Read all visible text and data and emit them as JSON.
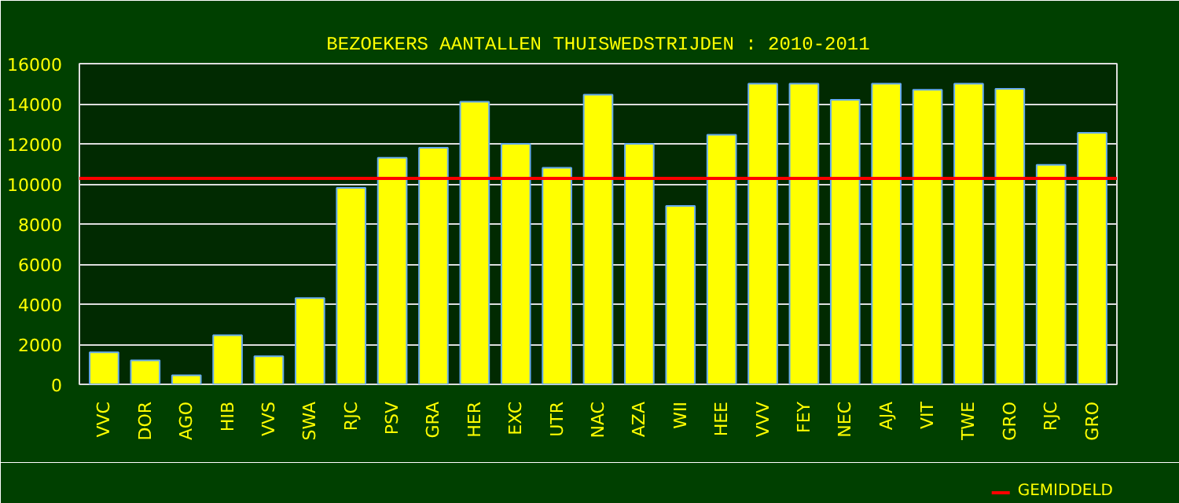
{
  "chart_data": {
    "type": "bar",
    "title": "BEZOEKERS AANTALLEN THUISWEDSTRIJDEN : 2010-2011",
    "categories": [
      "VVC",
      "DOR",
      "AGO",
      "HIB",
      "VVS",
      "SWA",
      "RJC",
      "PSV",
      "GRA",
      "HER",
      "EXC",
      "UTR",
      "NAC",
      "AZA",
      "WII",
      "HEE",
      "VVV",
      "FEY",
      "NEC",
      "AJA",
      "VIT",
      "TWE",
      "GRO",
      "RJC",
      "GRO"
    ],
    "values": [
      1600,
      1200,
      450,
      2450,
      1400,
      4300,
      9800,
      11300,
      11800,
      14100,
      12000,
      10800,
      14450,
      12000,
      8900,
      12450,
      15000,
      15000,
      14200,
      15000,
      14700,
      15000,
      14750,
      10950,
      12550
    ],
    "color": "#ffff00",
    "ylim": [
      0,
      16000
    ],
    "yticks": [
      0,
      2000,
      4000,
      6000,
      8000,
      10000,
      12000,
      14000,
      16000
    ],
    "grid": "y",
    "ref_lines": [
      {
        "axis": "y",
        "value": 10270,
        "label": "GEMIDDELD",
        "color": "#ff0000"
      }
    ],
    "legend": "bottom right"
  }
}
